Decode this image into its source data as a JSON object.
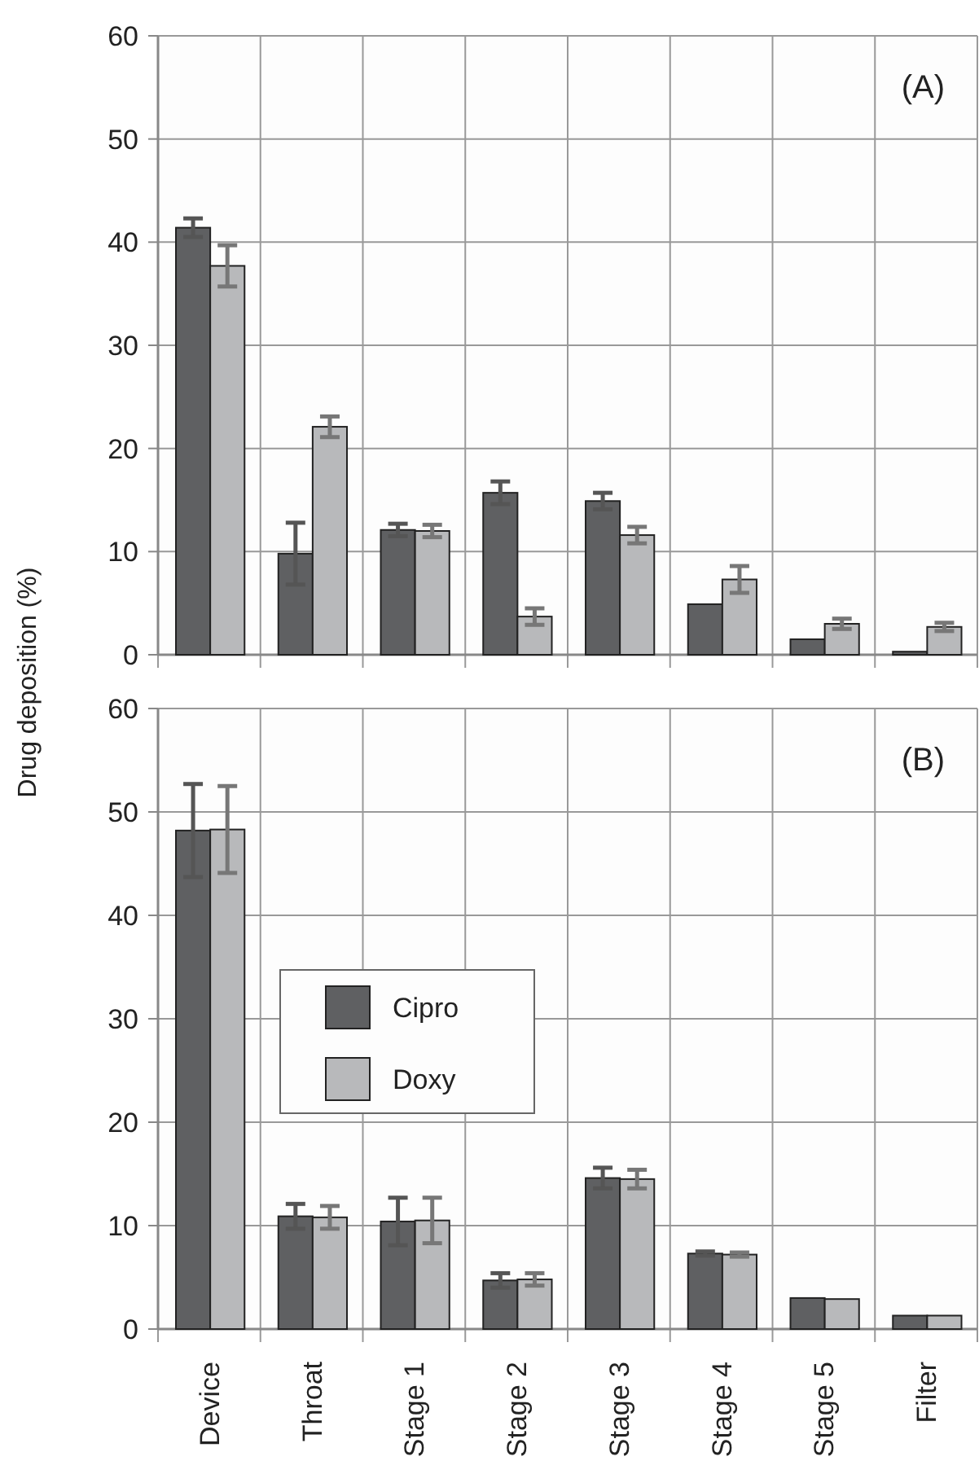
{
  "chart_data": [
    {
      "type": "bar",
      "ylabel": "Drug deposition (%)",
      "annotations": [
        "(A)"
      ],
      "categories": [
        null,
        null,
        null,
        null,
        null,
        null,
        null,
        null
      ],
      "ylim": [
        0,
        60
      ],
      "yticks": [
        0,
        10,
        20,
        30,
        40,
        50,
        60
      ],
      "grid": true,
      "series": [
        {
          "color": "#5f6062",
          "values": [
            41.4,
            9.8,
            12.1,
            15.7,
            14.9,
            4.9,
            1.5,
            0.3
          ],
          "errors": [
            0.9,
            3.0,
            0.6,
            1.1,
            0.8,
            null,
            null,
            null
          ]
        },
        {
          "color": "#b8b9bb",
          "values": [
            37.7,
            22.1,
            12.0,
            3.7,
            11.6,
            7.3,
            3.0,
            2.7
          ],
          "errors": [
            2.0,
            1.0,
            0.6,
            0.8,
            0.8,
            1.3,
            0.5,
            0.4
          ]
        }
      ]
    },
    {
      "type": "bar",
      "annotations": [
        "(B)"
      ],
      "categories": [
        "Device",
        "Throat",
        "Stage 1",
        "Stage 2",
        "Stage 3",
        "Stage 4",
        "Stage 5",
        "Filter"
      ],
      "ylim": [
        0,
        60
      ],
      "yticks": [
        0,
        10,
        20,
        30,
        40,
        50,
        60
      ],
      "grid": true,
      "legend": "left",
      "series": [
        {
          "name": "Cipro",
          "color": "#5f6062",
          "values": [
            48.2,
            10.9,
            10.4,
            4.7,
            14.6,
            7.3,
            3.0,
            1.3
          ],
          "errors": [
            4.5,
            1.2,
            2.3,
            0.7,
            1.0,
            0.2,
            null,
            null
          ]
        },
        {
          "name": "Doxy",
          "color": "#b8b9bb",
          "values": [
            48.3,
            10.8,
            10.5,
            4.8,
            14.5,
            7.2,
            2.9,
            1.3
          ],
          "errors": [
            4.2,
            1.1,
            2.2,
            0.6,
            0.9,
            0.2,
            null,
            null
          ]
        }
      ]
    }
  ]
}
